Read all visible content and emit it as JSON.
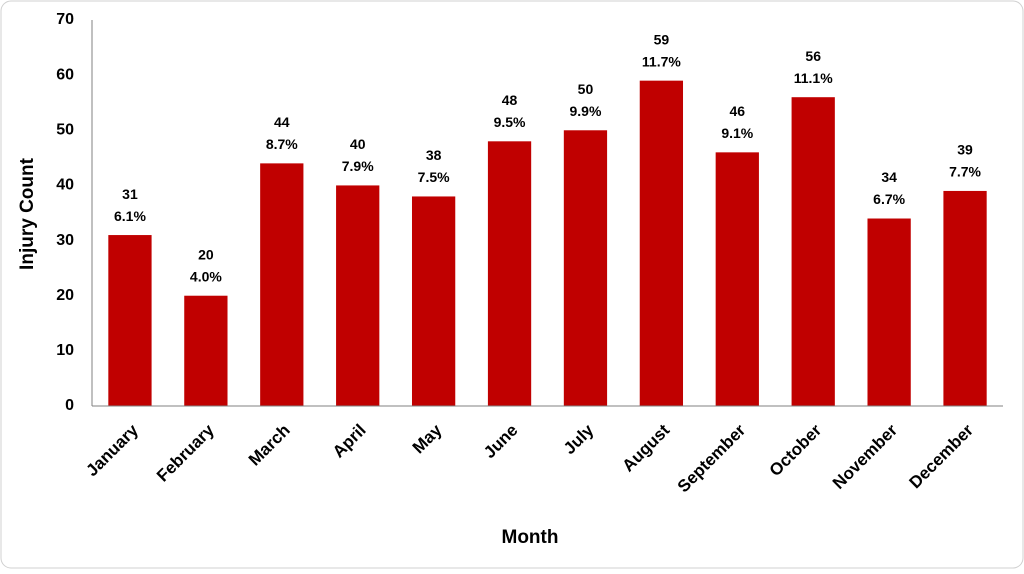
{
  "chart_data": {
    "type": "bar",
    "x_label": "Month",
    "y_label": "Injury Count",
    "categories": [
      "January",
      "February",
      "March",
      "April",
      "May",
      "June",
      "July",
      "August",
      "September",
      "October",
      "November",
      "December"
    ],
    "values": [
      31,
      20,
      44,
      40,
      38,
      48,
      50,
      59,
      46,
      56,
      34,
      39
    ],
    "percent_labels": [
      "6.1%",
      "4.0%",
      "8.7%",
      "7.9%",
      "7.5%",
      "9.5%",
      "9.9%",
      "11.7%",
      "9.1%",
      "11.1%",
      "6.7%",
      "7.7%"
    ],
    "color": "#c00000",
    "ylim": [
      0,
      70
    ],
    "yticks": [
      0,
      10,
      20,
      30,
      40,
      50,
      60,
      70
    ],
    "grid": false
  }
}
